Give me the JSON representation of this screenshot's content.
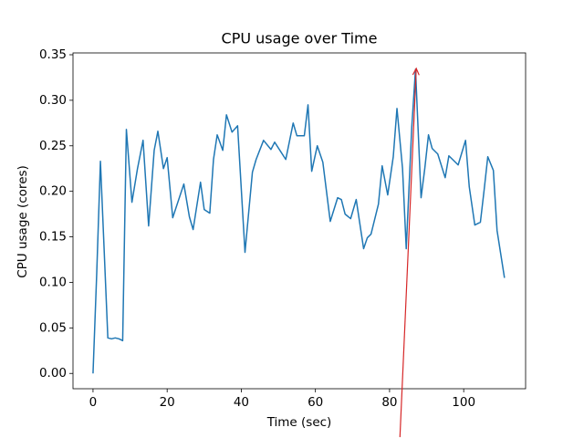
{
  "chart_data": {
    "type": "line",
    "title": "CPU usage over Time",
    "x_label": "Time (sec)",
    "y_label": "CPU usage (cores)",
    "x": [
      0,
      1,
      2,
      4,
      5,
      6,
      7,
      8,
      9,
      10.5,
      12,
      13.5,
      15,
      16.5,
      17.5,
      19,
      20,
      21.5,
      24.5,
      26,
      27,
      29,
      30,
      31.5,
      32.5,
      33.5,
      35,
      36,
      37.5,
      39,
      41,
      43,
      44,
      46,
      48,
      49,
      52,
      54,
      55,
      57,
      58,
      59,
      60.5,
      62,
      64,
      66,
      67,
      68,
      69.5,
      71,
      73,
      74,
      75,
      77,
      78,
      79.5,
      81,
      82,
      83.5,
      84.5,
      86,
      87,
      88.5,
      89.5,
      90.5,
      91.5,
      93,
      95,
      96,
      98.5,
      100.5,
      101.5,
      103,
      104.5,
      105.5,
      106.5,
      108,
      109,
      111
    ],
    "series": [
      {
        "color": "#1f77b4",
        "values": [
          0.0,
          0.11,
          0.233,
          0.039,
          0.038,
          0.039,
          0.038,
          0.036,
          0.268,
          0.188,
          0.225,
          0.256,
          0.162,
          0.245,
          0.266,
          0.225,
          0.237,
          0.171,
          0.208,
          0.172,
          0.158,
          0.21,
          0.18,
          0.176,
          0.235,
          0.262,
          0.245,
          0.284,
          0.265,
          0.272,
          0.133,
          0.221,
          0.235,
          0.256,
          0.246,
          0.254,
          0.235,
          0.275,
          0.261,
          0.261,
          0.295,
          0.222,
          0.25,
          0.232,
          0.167,
          0.193,
          0.191,
          0.175,
          0.17,
          0.191,
          0.137,
          0.149,
          0.153,
          0.186,
          0.228,
          0.196,
          0.238,
          0.291,
          0.225,
          0.137,
          0.271,
          0.334,
          0.193,
          0.225,
          0.262,
          0.247,
          0.241,
          0.215,
          0.239,
          0.229,
          0.256,
          0.205,
          0.163,
          0.166,
          0.201,
          0.238,
          0.223,
          0.157,
          0.105
        ]
      }
    ],
    "xlim": [
      -5.4,
      116.7
    ],
    "ylim": [
      -0.0168,
      0.352
    ],
    "xticks": [
      0,
      20,
      40,
      60,
      80,
      100
    ],
    "yticks": [
      {
        "value": 0,
        "label": "0.00"
      },
      0.05,
      {
        "value": 0.1,
        "label": "0.10"
      },
      0.15,
      {
        "value": 0.2,
        "label": "0.20"
      },
      0.25,
      {
        "value": 0.3,
        "label": "0.30"
      },
      0.35
    ],
    "annotations": [
      {
        "xy": [
          87.2,
          0.335
        ],
        "xytext": [
          82.8,
          -0.07
        ],
        "color": "#d62728"
      }
    ]
  }
}
